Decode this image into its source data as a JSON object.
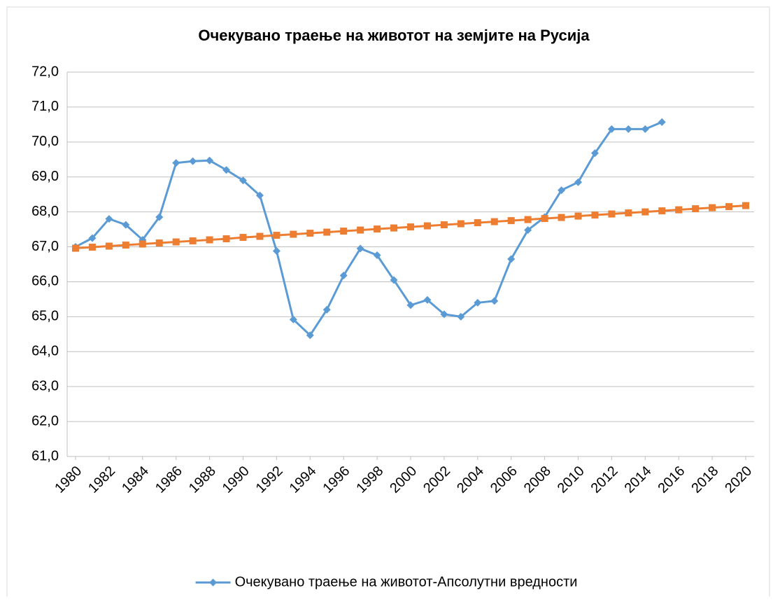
{
  "chart_data": {
    "type": "line",
    "title": "Очекувано траење на животот на земјите на Русија",
    "x": [
      1980,
      1981,
      1982,
      1983,
      1984,
      1985,
      1986,
      1987,
      1988,
      1989,
      1990,
      1991,
      1992,
      1993,
      1994,
      1995,
      1996,
      1997,
      1998,
      1999,
      2000,
      2001,
      2002,
      2003,
      2004,
      2005,
      2006,
      2007,
      2008,
      2009,
      2010,
      2011,
      2012,
      2013,
      2014,
      2015,
      2016,
      2017,
      2018,
      2019,
      2020
    ],
    "series": [
      {
        "name": "Очекувано траење на животот-Апсолутни вредности",
        "color": "#5b9bd5",
        "marker": "diamond",
        "values": [
          67.0,
          67.25,
          67.8,
          67.63,
          67.2,
          67.85,
          69.4,
          69.45,
          69.47,
          69.2,
          68.9,
          68.47,
          66.88,
          64.92,
          64.47,
          65.2,
          66.18,
          66.95,
          66.76,
          66.05,
          65.33,
          65.48,
          65.07,
          65.0,
          65.4,
          65.45,
          66.65,
          67.48,
          67.85,
          68.62,
          68.85,
          69.68,
          70.37,
          70.37,
          70.37,
          70.57,
          null,
          null,
          null,
          null,
          null
        ]
      },
      {
        "color": "#ed7d31",
        "marker": "square",
        "values": [
          66.96,
          66.99,
          67.02,
          67.05,
          67.08,
          67.11,
          67.14,
          67.17,
          67.2,
          67.23,
          67.27,
          67.3,
          67.33,
          67.36,
          67.39,
          67.42,
          67.45,
          67.48,
          67.51,
          67.54,
          67.57,
          67.6,
          67.63,
          67.66,
          67.69,
          67.72,
          67.75,
          67.78,
          67.81,
          67.84,
          67.88,
          67.91,
          67.94,
          67.97,
          68.0,
          68.03,
          68.06,
          68.09,
          68.12,
          68.15,
          68.18
        ]
      }
    ],
    "xlim": [
      1980,
      2020
    ],
    "xticks": [
      1980,
      1982,
      1984,
      1986,
      1988,
      1990,
      1992,
      1994,
      1996,
      1998,
      2000,
      2002,
      2004,
      2006,
      2008,
      2010,
      2012,
      2014,
      2016,
      2018,
      2020
    ],
    "ylim": [
      61,
      72
    ],
    "yticks": [
      {
        "value": 61,
        "label": "61,0"
      },
      {
        "value": 62,
        "label": "62,0"
      },
      {
        "value": 63,
        "label": "63,0"
      },
      {
        "value": 64,
        "label": "64,0"
      },
      {
        "value": 65,
        "label": "65,0"
      },
      {
        "value": 66,
        "label": "66,0"
      },
      {
        "value": 67,
        "label": "67,0"
      },
      {
        "value": 68,
        "label": "68,0"
      },
      {
        "value": 69,
        "label": "69,0"
      },
      {
        "value": 70,
        "label": "70,0"
      },
      {
        "value": 71,
        "label": "71,0"
      },
      {
        "value": 72,
        "label": "72,0"
      }
    ],
    "grid": true,
    "legend": "bottom"
  }
}
